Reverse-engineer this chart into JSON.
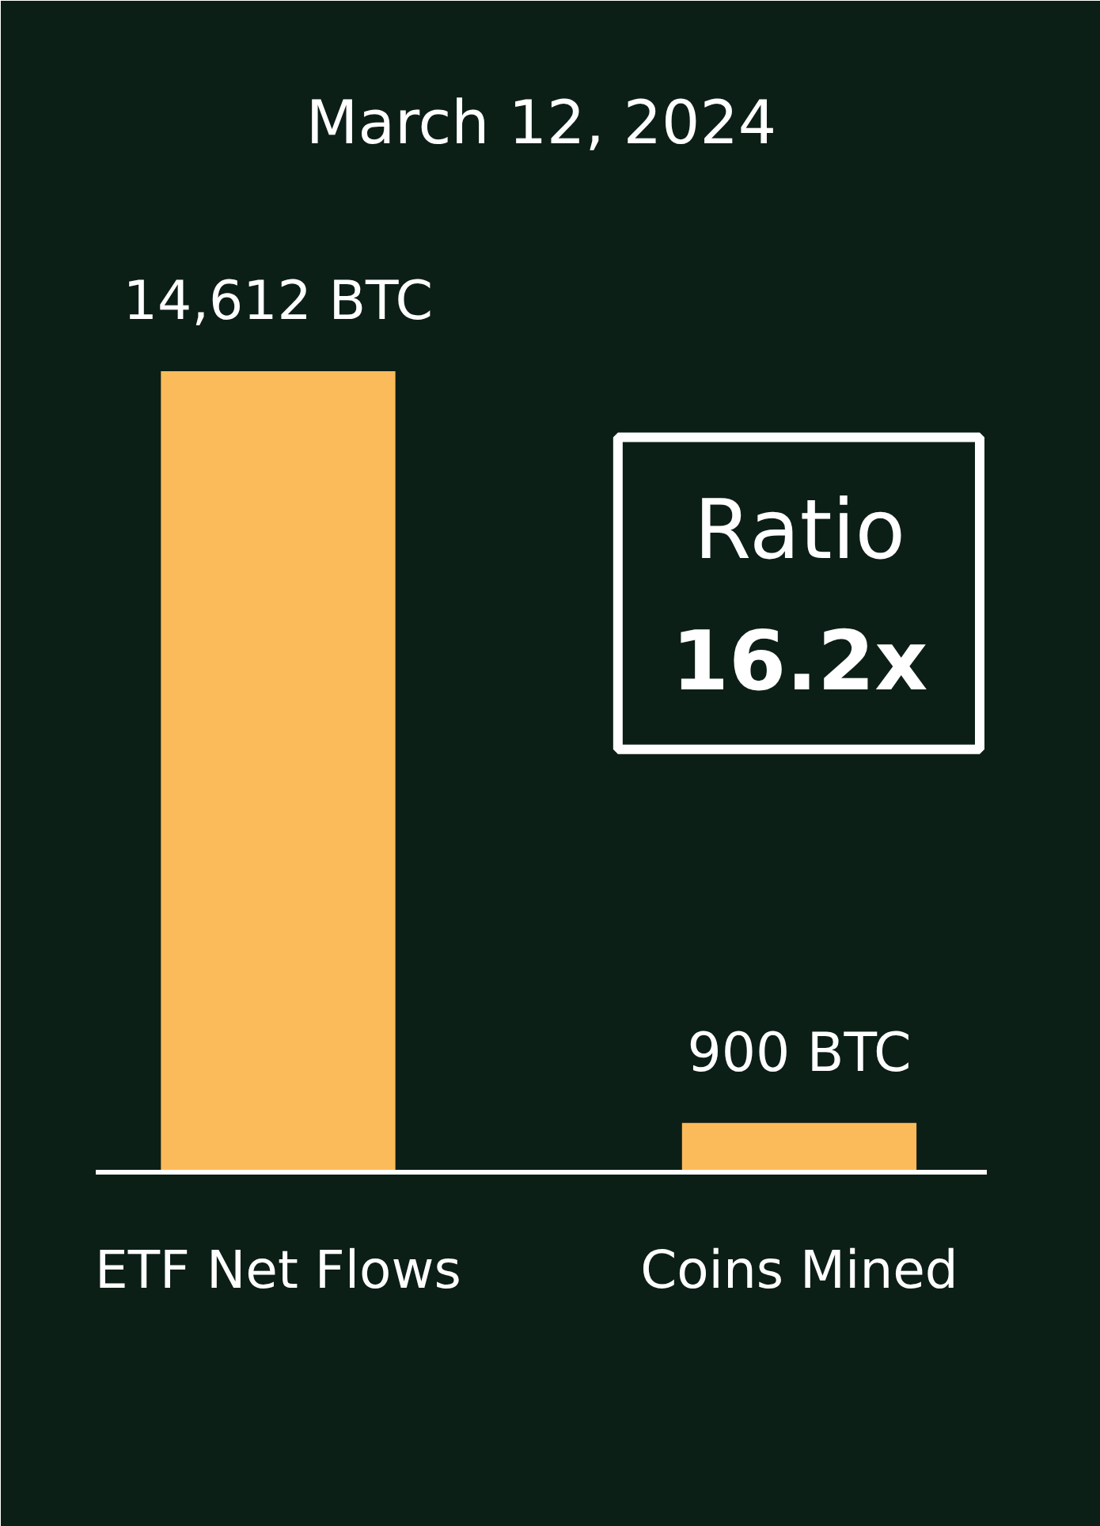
{
  "chart_data": {
    "type": "bar",
    "title": "March 12, 2024",
    "categories": [
      "ETF Net Flows",
      "Coins Mined"
    ],
    "values": [
      14612,
      900
    ],
    "color": "#fcbb5a",
    "value_labels": [
      "14,612 BTC",
      "900 BTC"
    ],
    "annotations": [
      "Ratio",
      "16.2x"
    ],
    "tick_labels": "x"
  }
}
